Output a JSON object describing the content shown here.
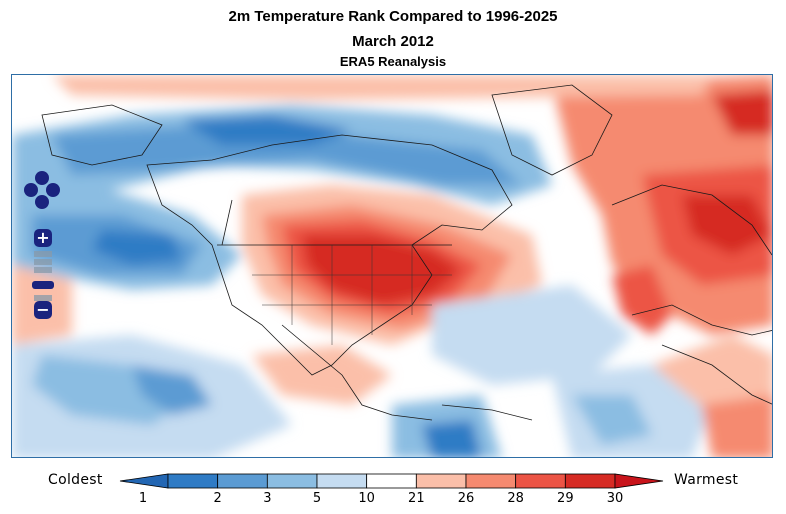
{
  "header": {
    "title": "2m Temperature Rank Compared to 1996-2025",
    "subtitle": "March 2012",
    "source": "ERA5 Reanalysis"
  },
  "map_controls": {
    "zoom_in": "+",
    "zoom_out": "−",
    "zoom_out_small": "−",
    "pan": "pan-arrows-icon"
  },
  "legend": {
    "low_label": "Coldest",
    "high_label": "Warmest",
    "ticks": [
      "1",
      "2",
      "3",
      "5",
      "10",
      "21",
      "26",
      "28",
      "29",
      "30"
    ],
    "colors": [
      "#2f7bc5",
      "#5b9bd3",
      "#8bbde2",
      "#c5dcf1",
      "#ffffff",
      "#fbbfa9",
      "#f58a70",
      "#ec5445",
      "#d62b24"
    ],
    "cold_end_color": "#2266b3",
    "warm_end_color": "#c8141b"
  }
}
